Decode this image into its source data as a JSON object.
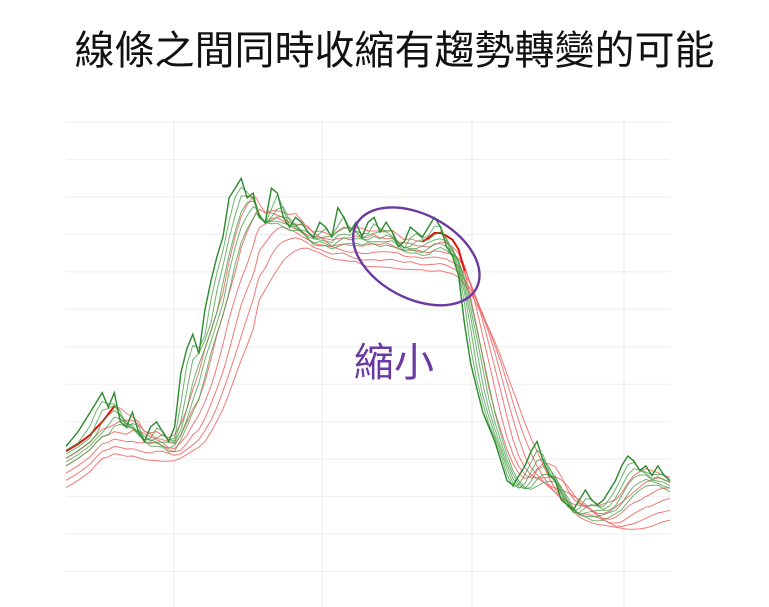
{
  "page": {
    "title": "線條之間同時收縮有趨勢轉變的可能"
  },
  "chart_data": {
    "type": "line",
    "grid": true,
    "legend": "none",
    "xlim": [
      0,
      100
    ],
    "ylim": [
      0,
      100
    ],
    "annotation": {
      "label": "縮小",
      "center": [
        58,
        72
      ],
      "shape": "ellipse",
      "color": "#6a3aa0"
    },
    "price_series_color": "#2e8b2e",
    "ribbon_green_color": "#3f9a3f",
    "ribbon_red_color": "#f06060",
    "emphasis_red_color": "#e01010",
    "price": {
      "x": [
        0,
        2,
        4,
        5,
        6,
        7,
        8,
        9,
        10,
        11,
        12,
        13,
        14,
        15,
        16,
        17,
        18,
        19,
        20,
        21,
        22,
        23,
        24,
        25,
        26,
        27,
        28,
        29,
        30,
        31,
        31.5,
        32,
        33,
        34,
        35,
        36,
        37,
        38,
        39,
        40,
        41,
        42,
        43,
        44,
        45,
        46,
        47,
        48,
        49,
        50,
        51,
        52,
        53,
        54,
        55,
        56,
        57,
        58,
        59,
        60,
        61,
        62,
        63,
        64,
        65,
        66,
        67,
        68,
        69,
        70,
        71,
        72,
        73,
        74,
        75,
        76,
        77,
        78,
        79,
        80,
        81,
        82,
        83,
        84,
        85,
        86,
        87,
        88,
        89,
        90,
        91,
        92,
        93,
        94,
        95,
        96,
        97,
        98,
        99,
        100
      ],
      "y": [
        33,
        36,
        40,
        42,
        44,
        41,
        44,
        38,
        37,
        40,
        36,
        34,
        37,
        38,
        36,
        34,
        37,
        48,
        53,
        56,
        52,
        61,
        67,
        72,
        76,
        84,
        86,
        88,
        84,
        85,
        82,
        80,
        79,
        86,
        85,
        80,
        78,
        80,
        79,
        77,
        76,
        79,
        78,
        76,
        82,
        80,
        77,
        79,
        76,
        79,
        80,
        77,
        79,
        77,
        74,
        75,
        78,
        77,
        76,
        78,
        80,
        78,
        74,
        72,
        68,
        58,
        50,
        45,
        40,
        37,
        34,
        30,
        26,
        25,
        27,
        29,
        32,
        34,
        30,
        27,
        26,
        22,
        21,
        20,
        22,
        24,
        22,
        21,
        22,
        24,
        26,
        29,
        31,
        30,
        28,
        29,
        27,
        29,
        27,
        26
      ]
    },
    "ribbons": {
      "green": [
        {
          "lag": 1,
          "offset": 0
        },
        {
          "lag": 2,
          "offset": -0.8
        },
        {
          "lag": 3,
          "offset": -1.6
        },
        {
          "lag": 4,
          "offset": -2.4
        },
        {
          "lag": 5,
          "offset": -3.2
        },
        {
          "lag": 6,
          "offset": -4.0
        }
      ],
      "red": [
        {
          "lag": 5,
          "offset": -1.0
        },
        {
          "lag": 7,
          "offset": -2.5
        },
        {
          "lag": 9,
          "offset": -4.0
        },
        {
          "lag": 11,
          "offset": -5.5
        },
        {
          "lag": 13,
          "offset": -7.0
        },
        {
          "lag": 15,
          "offset": -8.5
        }
      ]
    }
  }
}
